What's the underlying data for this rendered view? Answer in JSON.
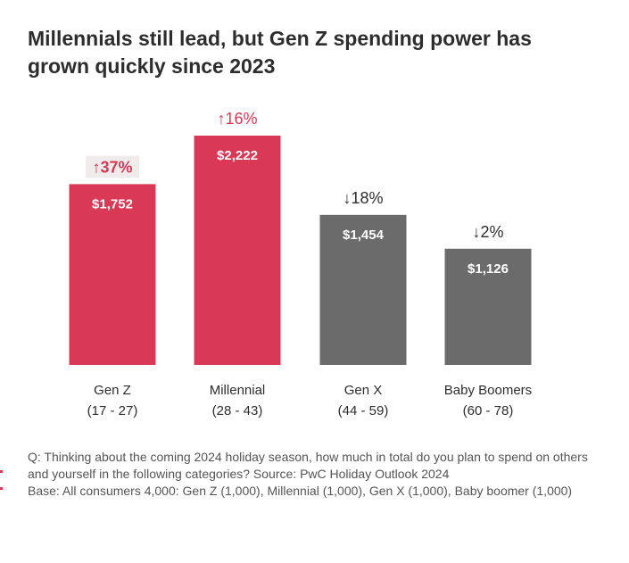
{
  "title": "Millennials still lead, but Gen Z spending power has grown quickly since 2023",
  "chart_data": {
    "type": "bar",
    "title": "Millennials still lead, but Gen Z spending power has grown quickly since 2023",
    "xlabel": "",
    "ylabel": "",
    "ylim": [
      0,
      2222
    ],
    "grid": false,
    "categories": [
      "Gen Z",
      "Millennial",
      "Gen X",
      "Baby Boomers"
    ],
    "age_ranges": [
      "(17 - 27)",
      "(28 - 43)",
      "(44 - 59)",
      "(60 - 78)"
    ],
    "values": [
      1752,
      2222,
      1454,
      1126
    ],
    "value_labels": [
      "$1,752",
      "$2,222",
      "$1,454",
      "$1,126"
    ],
    "change_labels": [
      "↑37%",
      "↑16%",
      "↓18%",
      "↓2%"
    ],
    "change_direction": [
      "up",
      "up",
      "down",
      "down"
    ],
    "highlighted_change_index": 0,
    "colors": {
      "up_bar": "#d93954",
      "down_bar": "#6b6b6b",
      "up_text": "#d93954",
      "down_text": "#2d2d2d",
      "highlight_bg": "#f0ecec"
    }
  },
  "notes": {
    "question": "Q: Thinking about the coming 2024 holiday season, how much in total do you plan to spend on others and yourself in the following categories? Source: PwC Holiday Outlook 2024",
    "base": "Base: All consumers 4,000: Gen Z (1,000), Millennial (1,000), Gen X (1,000), Baby boomer (1,000)"
  }
}
